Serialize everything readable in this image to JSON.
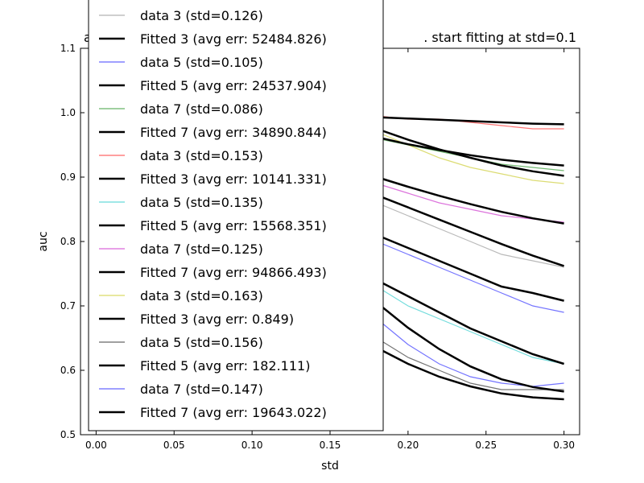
{
  "chart_data": {
    "type": "line",
    "title_left": "a",
    "title_right": ". start fitting at std=0.1",
    "xlabel": "std",
    "ylabel": "auc",
    "xlim": [
      -0.01,
      0.31
    ],
    "ylim": [
      0.5,
      1.1
    ],
    "xticks": [
      0.0,
      0.05,
      0.1,
      0.15,
      0.2,
      0.25,
      0.3
    ],
    "xtick_labels": [
      "0.00",
      "0.05",
      "0.10",
      "0.15",
      "0.20",
      "0.25",
      "0.30"
    ],
    "yticks": [
      0.5,
      0.6,
      0.7,
      0.8,
      0.9,
      1.0,
      1.1
    ],
    "ytick_labels": [
      "0.5",
      "0.6",
      "0.7",
      "0.8",
      "0.9",
      "1.0",
      "1.1"
    ],
    "grid": false,
    "legend_position": "upper-left",
    "series": [
      {
        "name": "data 3 (std=0.126)",
        "kind": "data",
        "color": "#7f7f7f",
        "x": [
          0.18,
          0.2,
          0.22,
          0.24,
          0.26,
          0.28,
          0.3
        ],
        "y": [
          0.86,
          0.84,
          0.82,
          0.8,
          0.78,
          0.77,
          0.76
        ]
      },
      {
        "name": "Fitted 3 (avg err: 52484.826)",
        "kind": "fit",
        "color": "#000000",
        "x": [
          0.18,
          0.2,
          0.22,
          0.24,
          0.26,
          0.28,
          0.3
        ],
        "y": [
          0.872,
          0.853,
          0.834,
          0.815,
          0.796,
          0.778,
          0.762
        ]
      },
      {
        "name": "data 5 (std=0.105)",
        "kind": "data",
        "color": "#0000ff",
        "x": [
          0.18,
          0.2,
          0.22,
          0.24,
          0.26,
          0.28,
          0.3
        ],
        "y": [
          0.8,
          0.78,
          0.76,
          0.74,
          0.72,
          0.7,
          0.69
        ]
      },
      {
        "name": "Fitted 5 (avg err: 24537.904)",
        "kind": "fit",
        "color": "#000000",
        "x": [
          0.18,
          0.2,
          0.22,
          0.24,
          0.26,
          0.28,
          0.3
        ],
        "y": [
          0.81,
          0.79,
          0.77,
          0.75,
          0.73,
          0.72,
          0.708
        ]
      },
      {
        "name": "data 7 (std=0.086)",
        "kind": "data",
        "color": "#008000",
        "x": [
          0.18,
          0.2,
          0.22,
          0.24,
          0.26,
          0.28,
          0.3
        ],
        "y": [
          0.96,
          0.95,
          0.94,
          0.93,
          0.92,
          0.915,
          0.91
        ]
      },
      {
        "name": "Fitted 7 (avg err: 34890.844)",
        "kind": "fit",
        "color": "#000000",
        "x": [
          0.18,
          0.2,
          0.22,
          0.24,
          0.26,
          0.28,
          0.3
        ],
        "y": [
          0.962,
          0.951,
          0.942,
          0.934,
          0.927,
          0.922,
          0.918
        ]
      },
      {
        "name": "data 3 (std=0.153)",
        "kind": "data",
        "color": "#ff0000",
        "x": [
          0.18,
          0.2,
          0.22,
          0.24,
          0.26,
          0.28,
          0.3
        ],
        "y": [
          0.995,
          0.99,
          0.99,
          0.985,
          0.98,
          0.975,
          0.975
        ]
      },
      {
        "name": "Fitted 3 (avg err: 10141.331)",
        "kind": "fit",
        "color": "#000000",
        "x": [
          0.18,
          0.2,
          0.22,
          0.24,
          0.26,
          0.28,
          0.3
        ],
        "y": [
          0.993,
          0.991,
          0.989,
          0.987,
          0.985,
          0.983,
          0.982
        ]
      },
      {
        "name": "data 5 (std=0.135)",
        "kind": "data",
        "color": "#00bfbf",
        "x": [
          0.18,
          0.2,
          0.22,
          0.24,
          0.26,
          0.28,
          0.3
        ],
        "y": [
          0.73,
          0.7,
          0.68,
          0.66,
          0.64,
          0.62,
          0.61
        ]
      },
      {
        "name": "Fitted 5 (avg err: 15568.351)",
        "kind": "fit",
        "color": "#000000",
        "x": [
          0.18,
          0.2,
          0.22,
          0.24,
          0.26,
          0.28,
          0.3
        ],
        "y": [
          0.74,
          0.715,
          0.69,
          0.665,
          0.645,
          0.625,
          0.61
        ]
      },
      {
        "name": "data 7 (std=0.125)",
        "kind": "data",
        "color": "#bf00bf",
        "x": [
          0.18,
          0.2,
          0.22,
          0.24,
          0.26,
          0.28,
          0.3
        ],
        "y": [
          0.89,
          0.875,
          0.86,
          0.85,
          0.84,
          0.835,
          0.83
        ]
      },
      {
        "name": "Fitted 7 (avg err: 94866.493)",
        "kind": "fit",
        "color": "#000000",
        "x": [
          0.18,
          0.2,
          0.22,
          0.24,
          0.26,
          0.28,
          0.3
        ],
        "y": [
          0.9,
          0.885,
          0.871,
          0.858,
          0.846,
          0.836,
          0.828
        ]
      },
      {
        "name": "data 3 (std=0.163)",
        "kind": "data",
        "color": "#bfbf00",
        "x": [
          0.18,
          0.2,
          0.22,
          0.24,
          0.26,
          0.28,
          0.3
        ],
        "y": [
          0.97,
          0.95,
          0.93,
          0.915,
          0.905,
          0.895,
          0.89
        ]
      },
      {
        "name": "Fitted 3 (avg err: 0.849)",
        "kind": "fit",
        "color": "#000000",
        "x": [
          0.18,
          0.2,
          0.22,
          0.24,
          0.26,
          0.28,
          0.3
        ],
        "y": [
          0.975,
          0.958,
          0.943,
          0.93,
          0.918,
          0.909,
          0.902
        ]
      },
      {
        "name": "data 5 (std=0.156)",
        "kind": "data",
        "color": "#000000",
        "x": [
          0.18,
          0.2,
          0.22,
          0.24,
          0.26,
          0.28,
          0.3
        ],
        "y": [
          0.65,
          0.62,
          0.6,
          0.58,
          0.57,
          0.57,
          0.57
        ]
      },
      {
        "name": "Fitted 5 (avg err: 182.111)",
        "kind": "fit",
        "color": "#000000",
        "x": [
          0.18,
          0.2,
          0.22,
          0.24,
          0.26,
          0.28,
          0.3
        ],
        "y": [
          0.705,
          0.666,
          0.633,
          0.606,
          0.586,
          0.574,
          0.567
        ]
      },
      {
        "name": "data 7 (std=0.147)",
        "kind": "data",
        "color": "#0000ff",
        "x": [
          0.18,
          0.2,
          0.22,
          0.24,
          0.26,
          0.28,
          0.3
        ],
        "y": [
          0.68,
          0.64,
          0.61,
          0.59,
          0.58,
          0.575,
          0.58
        ]
      },
      {
        "name": "Fitted 7 (avg err: 19643.022)",
        "kind": "fit",
        "color": "#000000",
        "x": [
          0.18,
          0.2,
          0.22,
          0.24,
          0.26,
          0.28,
          0.3
        ],
        "y": [
          0.635,
          0.61,
          0.59,
          0.575,
          0.564,
          0.558,
          0.555
        ]
      }
    ]
  }
}
